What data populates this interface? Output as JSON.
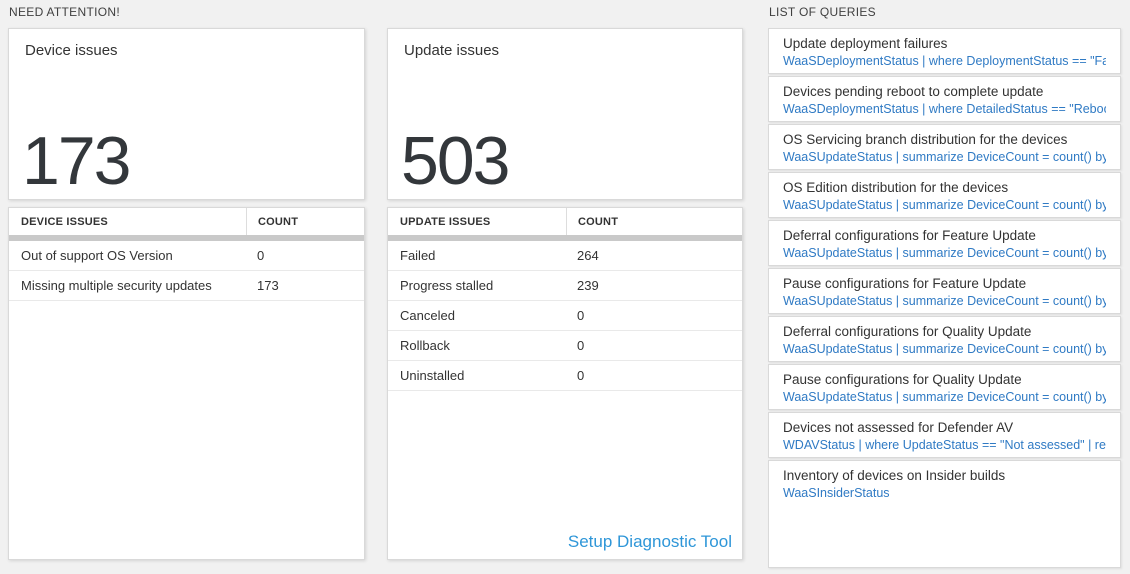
{
  "need_attention": {
    "label": "NEED ATTENTION!",
    "device_card": {
      "title": "Device issues",
      "count": "173"
    },
    "device_table": {
      "headers": [
        "DEVICE ISSUES",
        "COUNT"
      ],
      "rows": [
        {
          "label": "Out of support OS Version",
          "count": "0"
        },
        {
          "label": "Missing multiple security updates",
          "count": "173"
        }
      ]
    },
    "update_card": {
      "title": "Update issues",
      "count": "503"
    },
    "update_table": {
      "headers": [
        "UPDATE ISSUES",
        "COUNT"
      ],
      "rows": [
        {
          "label": "Failed",
          "count": "264"
        },
        {
          "label": "Progress stalled",
          "count": "239"
        },
        {
          "label": "Canceled",
          "count": "0"
        },
        {
          "label": "Rollback",
          "count": "0"
        },
        {
          "label": "Uninstalled",
          "count": "0"
        }
      ],
      "footer_link": "Setup Diagnostic Tool"
    }
  },
  "queries": {
    "label": "LIST OF QUERIES",
    "items": [
      {
        "title": "Update deployment failures",
        "query": "WaaSDeploymentStatus | where DeploymentStatus == \"Failed\" |..."
      },
      {
        "title": "Devices pending reboot to complete update",
        "query": "WaaSDeploymentStatus | where DetailedStatus == \"Reboot pend..."
      },
      {
        "title": "OS Servicing branch distribution for the devices",
        "query": "WaaSUpdateStatus | summarize DeviceCount = count() by OSSer..."
      },
      {
        "title": "OS Edition distribution for the devices",
        "query": "WaaSUpdateStatus | summarize DeviceCount = count() by OSEdit..."
      },
      {
        "title": "Deferral configurations for Feature Update",
        "query": "WaaSUpdateStatus | summarize DeviceCount = count() by Featur..."
      },
      {
        "title": "Pause configurations for Feature Update",
        "query": "WaaSUpdateStatus | summarize DeviceCount = count() by Featur..."
      },
      {
        "title": "Deferral configurations for Quality Update",
        "query": "WaaSUpdateStatus | summarize DeviceCount = count() by Qualit..."
      },
      {
        "title": "Pause configurations for Quality Update",
        "query": "WaaSUpdateStatus | summarize DeviceCount = count() by Qualit..."
      },
      {
        "title": "Devices not assessed for Defender AV",
        "query": "WDAVStatus | where UpdateStatus == \"Not assessed\" | render ta..."
      },
      {
        "title": "Inventory of devices on Insider builds",
        "query": "WaaSInsiderStatus"
      }
    ]
  },
  "colors": {
    "page_background": "#f1f1f1",
    "card_border": "#d9d9d9",
    "header_bar_gray": "#c9c9c9",
    "query_link_blue": "#2f7ac4",
    "setup_link_blue": "#2e96d8",
    "big_number_color": "#33373b"
  }
}
